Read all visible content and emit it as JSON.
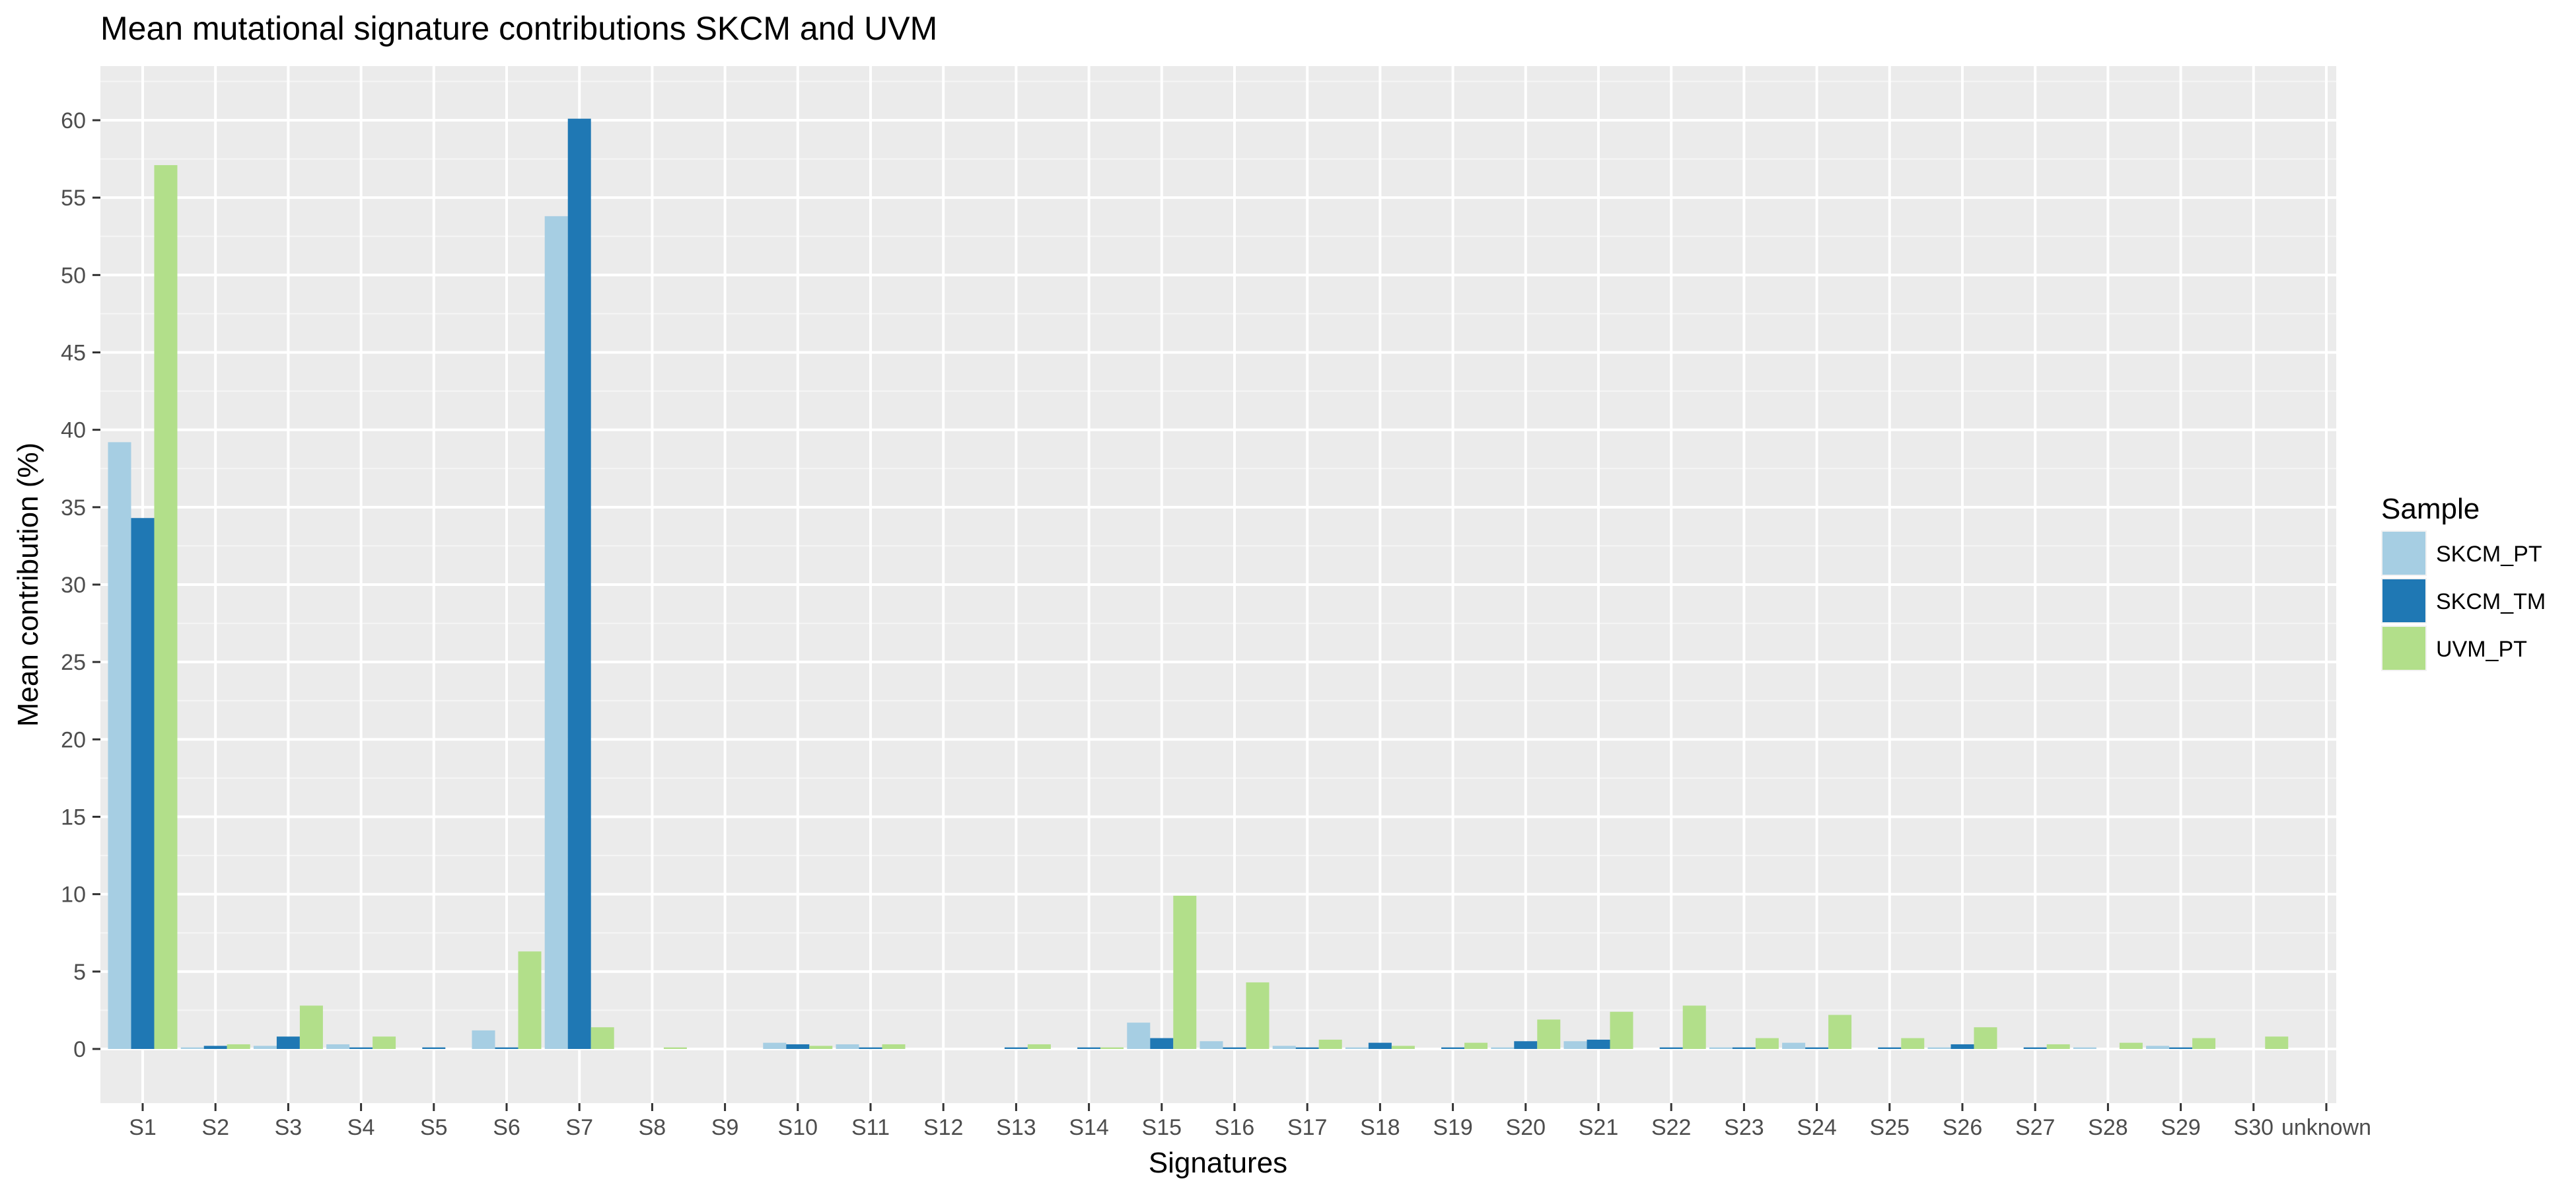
{
  "chart_data": {
    "type": "bar",
    "title": "Mean mutational signature contributions SKCM and UVM",
    "xlabel": "Signatures",
    "ylabel": "Mean contribution (%)",
    "ylim": [
      -3.5,
      63.5
    ],
    "yticks": [
      0,
      5,
      10,
      15,
      20,
      25,
      30,
      35,
      40,
      45,
      50,
      55,
      60
    ],
    "grid": true,
    "legend": {
      "title": "Sample",
      "position": "right"
    },
    "categories": [
      "S1",
      "S2",
      "S3",
      "S4",
      "S5",
      "S6",
      "S7",
      "S8",
      "S9",
      "S10",
      "S11",
      "S12",
      "S13",
      "S14",
      "S15",
      "S16",
      "S17",
      "S18",
      "S19",
      "S20",
      "S21",
      "S22",
      "S23",
      "S24",
      "S25",
      "S26",
      "S27",
      "S28",
      "S29",
      "S30",
      "unknown"
    ],
    "series": [
      {
        "name": "SKCM_PT",
        "color": "#a6cee3",
        "values": [
          39.2,
          0.1,
          0.2,
          0.3,
          0.0,
          1.2,
          53.8,
          0.0,
          0.0,
          0.4,
          0.3,
          0.0,
          0.0,
          0.0,
          1.7,
          0.5,
          0.2,
          0.1,
          0.0,
          0.1,
          0.5,
          0.0,
          0.1,
          0.4,
          0.0,
          0.1,
          0.0,
          0.1,
          0.2,
          0.0,
          0.0
        ]
      },
      {
        "name": "SKCM_TM",
        "color": "#1f78b4",
        "values": [
          34.3,
          0.2,
          0.8,
          0.1,
          0.1,
          0.1,
          60.1,
          0.0,
          0.0,
          0.3,
          0.1,
          0.0,
          0.1,
          0.1,
          0.7,
          0.1,
          0.1,
          0.4,
          0.1,
          0.5,
          0.6,
          0.1,
          0.1,
          0.1,
          0.1,
          0.3,
          0.1,
          0.0,
          0.1,
          0.0,
          0.0
        ]
      },
      {
        "name": "UVM_PT",
        "color": "#b2df8a",
        "values": [
          57.1,
          0.3,
          2.8,
          0.8,
          0.0,
          6.3,
          1.4,
          0.1,
          0.0,
          0.2,
          0.3,
          0.0,
          0.3,
          0.1,
          9.9,
          4.3,
          0.6,
          0.2,
          0.4,
          1.9,
          2.4,
          2.8,
          0.7,
          2.2,
          0.7,
          1.4,
          0.3,
          0.4,
          0.7,
          0.8,
          0.0
        ]
      }
    ]
  }
}
